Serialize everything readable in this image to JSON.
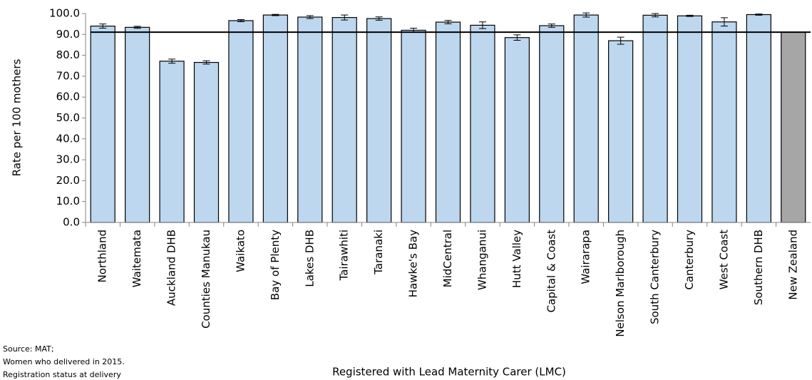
{
  "chart_data": {
    "type": "bar",
    "y_label": "Rate per 100 mothers",
    "x_label": "Registered with Lead Maternity Carer (LMC)",
    "notes": [
      "Source: MAT;",
      "Women who delivered in 2015.",
      "Registration status at delivery"
    ],
    "categories": [
      "Northland",
      "Waitemata",
      "Auckland DHB",
      "Counties Manukau",
      "Waikato",
      "Bay of Plenty",
      "Lakes DHB",
      "Tairawhiti",
      "Taranaki",
      "Hawke's Bay",
      "MidCentral",
      "Whanganui",
      "Hutt Valley",
      "Capital & Coast",
      "Wairarapa",
      "Nelson Marlborough",
      "South Canterbury",
      "Canterbury",
      "West Coast",
      "Southern DHB",
      "New Zealand"
    ],
    "values": [
      94.0,
      93.4,
      77.2,
      76.6,
      96.6,
      99.3,
      98.3,
      98.1,
      97.6,
      92.0,
      95.9,
      94.4,
      88.5,
      94.2,
      99.3,
      87.0,
      99.2,
      98.9,
      96.0,
      99.5,
      91.1
    ],
    "errors": [
      1.0,
      0.5,
      1.0,
      0.8,
      0.5,
      0.3,
      0.7,
      1.2,
      0.8,
      1.0,
      0.8,
      1.6,
      1.3,
      0.8,
      1.0,
      1.7,
      0.8,
      0.3,
      2.0,
      0.3,
      null
    ],
    "colors": [
      "#bdd7ee",
      "#bdd7ee",
      "#bdd7ee",
      "#bdd7ee",
      "#bdd7ee",
      "#bdd7ee",
      "#bdd7ee",
      "#bdd7ee",
      "#bdd7ee",
      "#bdd7ee",
      "#bdd7ee",
      "#bdd7ee",
      "#bdd7ee",
      "#bdd7ee",
      "#bdd7ee",
      "#bdd7ee",
      "#bdd7ee",
      "#bdd7ee",
      "#bdd7ee",
      "#bdd7ee",
      "#a6a6a6"
    ],
    "reference_line": 91.1,
    "ylim": [
      0,
      100
    ],
    "yticks": [
      {
        "value": 0,
        "label": "0.0"
      },
      {
        "value": 10,
        "label": "10.0"
      },
      {
        "value": 20,
        "label": "20.0"
      },
      {
        "value": 30,
        "label": "30.0"
      },
      {
        "value": 40,
        "label": "40.0"
      },
      {
        "value": 50,
        "label": "50.0"
      },
      {
        "value": 60,
        "label": "60.0"
      },
      {
        "value": 70,
        "label": "70.0"
      },
      {
        "value": 80,
        "label": "80.0"
      },
      {
        "value": 90,
        "label": "90.0"
      },
      {
        "value": 100,
        "label": "100.0"
      }
    ]
  }
}
